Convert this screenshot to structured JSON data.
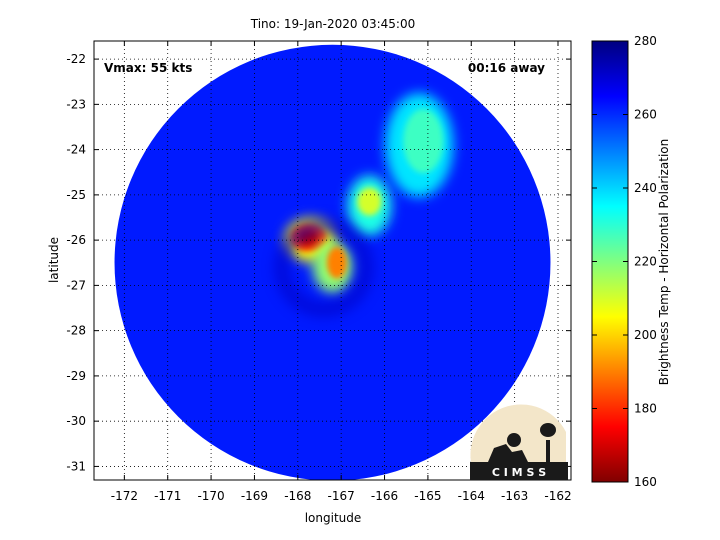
{
  "chart_data": {
    "type": "heatmap",
    "title": "Tino: 19-Jan-2020 03:45:00",
    "xlabel": "longitude",
    "ylabel": "latitude",
    "xlim": [
      -172.7,
      -161.7
    ],
    "ylim": [
      -31.3,
      -21.6
    ],
    "x_ticks": [
      -172,
      -171,
      -170,
      -169,
      -168,
      -167,
      -166,
      -165,
      -164,
      -163,
      -162
    ],
    "y_ticks": [
      -22,
      -23,
      -24,
      -25,
      -26,
      -27,
      -28,
      -29,
      -30,
      -31
    ],
    "grid": true,
    "colorbar": {
      "label": "Brightness Temp - Horizontal Polarization",
      "range": [
        160,
        280
      ],
      "ticks": [
        160,
        180,
        200,
        220,
        240,
        260,
        280
      ],
      "colormap": "jet"
    },
    "swath": {
      "shape": "circle",
      "center_lon": -167.2,
      "center_lat": -26.5,
      "radius_lon": 5.2,
      "radius_lat": 4.65
    },
    "background_value": 262,
    "features": [
      {
        "name": "eye core cold pixels",
        "lon": -167.75,
        "lat": -25.95,
        "min_value": 170
      },
      {
        "name": "southern cold lobe",
        "lon": -167.1,
        "lat": -26.5,
        "min_value": 182
      },
      {
        "name": "eastern cold band",
        "lon": -166.35,
        "lat": -25.15,
        "min_value": 205
      },
      {
        "name": "northeast rain band",
        "lon": -165.2,
        "lat": -23.9,
        "min_value": 225
      }
    ],
    "annotations": {
      "vmax": "Vmax: 55 kts",
      "time_offset": "00:16 away"
    },
    "logo_text": "C I M S S"
  },
  "colors": {
    "axis": "#000000",
    "grid": "#000000",
    "background": "#ffffff"
  }
}
